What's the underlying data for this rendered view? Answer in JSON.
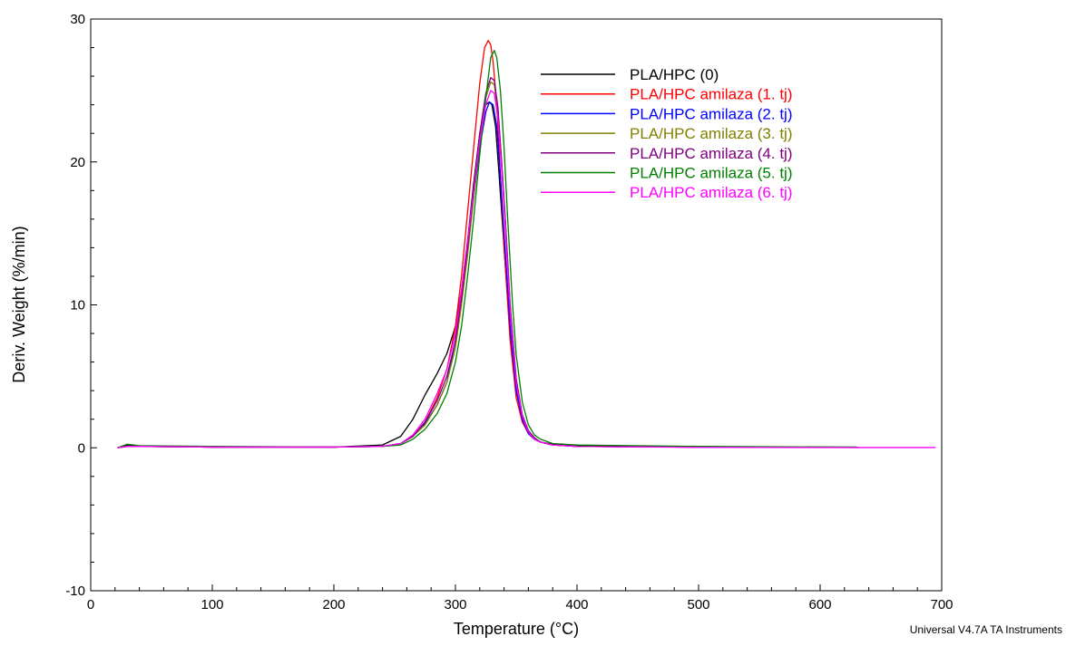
{
  "chart_data": {
    "type": "line",
    "title": "",
    "xlabel": "Temperature (°C)",
    "ylabel": "Deriv. Weight (%/min)",
    "xlim": [
      0,
      700
    ],
    "ylim": [
      -10,
      30
    ],
    "xticks": [
      0,
      100,
      200,
      300,
      400,
      500,
      600,
      700
    ],
    "yticks": [
      -10,
      0,
      10,
      20,
      30
    ],
    "grid": false,
    "legend_position": "top-right",
    "series": [
      {
        "name": "PLA/HPC (0)",
        "color": "#000000",
        "x": [
          22,
          30,
          40,
          100,
          200,
          240,
          255,
          265,
          275,
          285,
          293,
          300,
          305,
          310,
          315,
          320,
          325,
          328,
          330,
          333,
          336,
          340,
          345,
          350,
          355,
          360,
          365,
          370,
          380,
          400,
          500,
          600,
          632
        ],
        "y": [
          0,
          0.2,
          0.1,
          0.05,
          0.05,
          0.2,
          0.8,
          2.0,
          3.7,
          5.2,
          6.6,
          8.5,
          11.0,
          14.5,
          18.5,
          22.0,
          24.0,
          24.2,
          24.0,
          22.5,
          19.0,
          14.0,
          8.0,
          4.0,
          2.0,
          1.0,
          0.6,
          0.4,
          0.25,
          0.15,
          0.05,
          0.03,
          0.02
        ]
      },
      {
        "name": "PLA/HPC amilaza (1. tj)",
        "color": "#ff0000",
        "x": [
          22,
          30,
          40,
          100,
          200,
          240,
          255,
          265,
          275,
          285,
          293,
          300,
          305,
          310,
          315,
          320,
          324,
          327,
          329,
          331,
          334,
          337,
          340,
          345,
          350,
          355,
          360,
          365,
          370,
          380,
          400,
          500
        ],
        "y": [
          0,
          0.1,
          0.1,
          0.05,
          0.05,
          0.1,
          0.3,
          0.8,
          1.8,
          3.5,
          5.5,
          8.5,
          12.0,
          16.5,
          21.0,
          25.5,
          28.0,
          28.5,
          28.2,
          27.0,
          24.0,
          19.0,
          14.0,
          7.5,
          3.5,
          1.8,
          1.0,
          0.6,
          0.4,
          0.2,
          0.1,
          0.05
        ]
      },
      {
        "name": "PLA/HPC amilaza (2. tj)",
        "color": "#0000ff",
        "x": [
          22,
          30,
          40,
          100,
          200,
          240,
          255,
          265,
          275,
          285,
          293,
          300,
          305,
          310,
          315,
          320,
          325,
          328,
          331,
          334,
          337,
          340,
          345,
          350,
          355,
          360,
          365,
          370,
          380,
          400,
          500,
          580
        ],
        "y": [
          0,
          0.1,
          0.1,
          0.05,
          0.05,
          0.1,
          0.3,
          0.8,
          1.7,
          3.0,
          4.6,
          7.5,
          10.5,
          14.0,
          17.5,
          21.0,
          23.5,
          24.2,
          24.0,
          22.5,
          19.0,
          15.0,
          8.5,
          4.0,
          2.0,
          1.0,
          0.6,
          0.4,
          0.2,
          0.1,
          0.05,
          0.03
        ]
      },
      {
        "name": "PLA/HPC amilaza (3. tj)",
        "color": "#808000",
        "x": [
          22,
          30,
          40,
          100,
          200,
          240,
          255,
          265,
          275,
          285,
          293,
          300,
          305,
          310,
          315,
          320,
          325,
          329,
          332,
          335,
          338,
          341,
          345,
          350,
          355,
          360,
          365,
          370,
          380,
          400,
          500
        ],
        "y": [
          0,
          0.1,
          0.1,
          0.05,
          0.05,
          0.1,
          0.3,
          0.8,
          1.6,
          3.0,
          4.6,
          7.0,
          10.0,
          13.5,
          17.5,
          21.5,
          24.5,
          25.6,
          25.4,
          23.5,
          20.0,
          16.0,
          10.0,
          4.8,
          2.3,
          1.2,
          0.7,
          0.4,
          0.2,
          0.1,
          0.05
        ]
      },
      {
        "name": "PLA/HPC amilaza (4. tj)",
        "color": "#800080",
        "x": [
          22,
          30,
          40,
          100,
          200,
          240,
          255,
          265,
          275,
          285,
          293,
          300,
          305,
          310,
          315,
          320,
          325,
          329,
          332,
          335,
          338,
          341,
          345,
          350,
          355,
          360,
          365,
          370,
          380,
          400,
          500
        ],
        "y": [
          0,
          0.1,
          0.1,
          0.05,
          0.05,
          0.1,
          0.3,
          0.8,
          1.8,
          3.3,
          5.0,
          7.5,
          10.5,
          14.0,
          18.0,
          22.0,
          24.8,
          25.9,
          25.7,
          23.8,
          20.0,
          16.0,
          10.0,
          4.8,
          2.3,
          1.2,
          0.7,
          0.4,
          0.2,
          0.1,
          0.05
        ]
      },
      {
        "name": "PLA/HPC amilaza (5. tj)",
        "color": "#008000",
        "x": [
          22,
          30,
          40,
          100,
          200,
          240,
          255,
          265,
          275,
          285,
          293,
          300,
          305,
          310,
          315,
          320,
          325,
          329,
          332,
          334,
          337,
          340,
          343,
          347,
          350,
          355,
          360,
          365,
          370,
          380,
          400,
          500,
          630
        ],
        "y": [
          0,
          0.25,
          0.15,
          0.1,
          0.05,
          0.1,
          0.2,
          0.6,
          1.3,
          2.4,
          3.8,
          6.0,
          8.5,
          12.0,
          16.0,
          20.5,
          24.5,
          27.3,
          27.8,
          27.3,
          25.0,
          21.0,
          16.0,
          10.0,
          6.5,
          3.2,
          1.6,
          0.9,
          0.6,
          0.3,
          0.2,
          0.1,
          0.05
        ]
      },
      {
        "name": "PLA/HPC amilaza (6. tj)",
        "color": "#ff00ff",
        "x": [
          22,
          30,
          40,
          100,
          200,
          240,
          255,
          265,
          275,
          285,
          293,
          300,
          305,
          310,
          315,
          320,
          325,
          329,
          332,
          335,
          338,
          341,
          345,
          350,
          355,
          360,
          365,
          370,
          380,
          400,
          500,
          600,
          695
        ],
        "y": [
          0,
          0.1,
          0.1,
          0.05,
          0.05,
          0.1,
          0.3,
          0.9,
          2.0,
          3.8,
          5.5,
          8.0,
          11.0,
          14.5,
          18.0,
          21.5,
          24.0,
          25.0,
          24.8,
          23.0,
          19.5,
          15.5,
          9.5,
          4.5,
          2.2,
          1.1,
          0.6,
          0.4,
          0.2,
          0.1,
          0.03,
          0.02,
          0.02
        ]
      }
    ]
  },
  "footer": {
    "software": "Universal V4.7A TA Instruments"
  }
}
